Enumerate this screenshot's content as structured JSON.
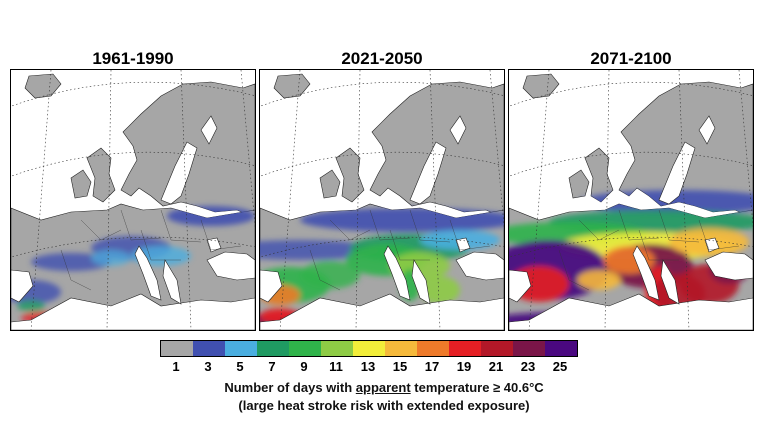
{
  "panels": [
    {
      "title": "1961-1990"
    },
    {
      "title": "2021-2050"
    },
    {
      "title": "2071-2100"
    }
  ],
  "legend": {
    "colors": [
      "#a6a6a6",
      "#4050b0",
      "#4aaee0",
      "#1f9a62",
      "#2fb34a",
      "#8ecb45",
      "#f2ee3a",
      "#f5b93b",
      "#ee7a2a",
      "#e51f24",
      "#b31828",
      "#7a1548",
      "#4a0880"
    ],
    "labels": [
      "1",
      "3",
      "5",
      "7",
      "9",
      "11",
      "13",
      "15",
      "17",
      "19",
      "21",
      "23",
      "25"
    ]
  },
  "caption": {
    "line1_pre": "Number of days with ",
    "line1_underlined": "apparent",
    "line1_post": " temperature ≥ 40.6°C",
    "line2": "(large heat stroke risk with extended exposure)"
  }
}
